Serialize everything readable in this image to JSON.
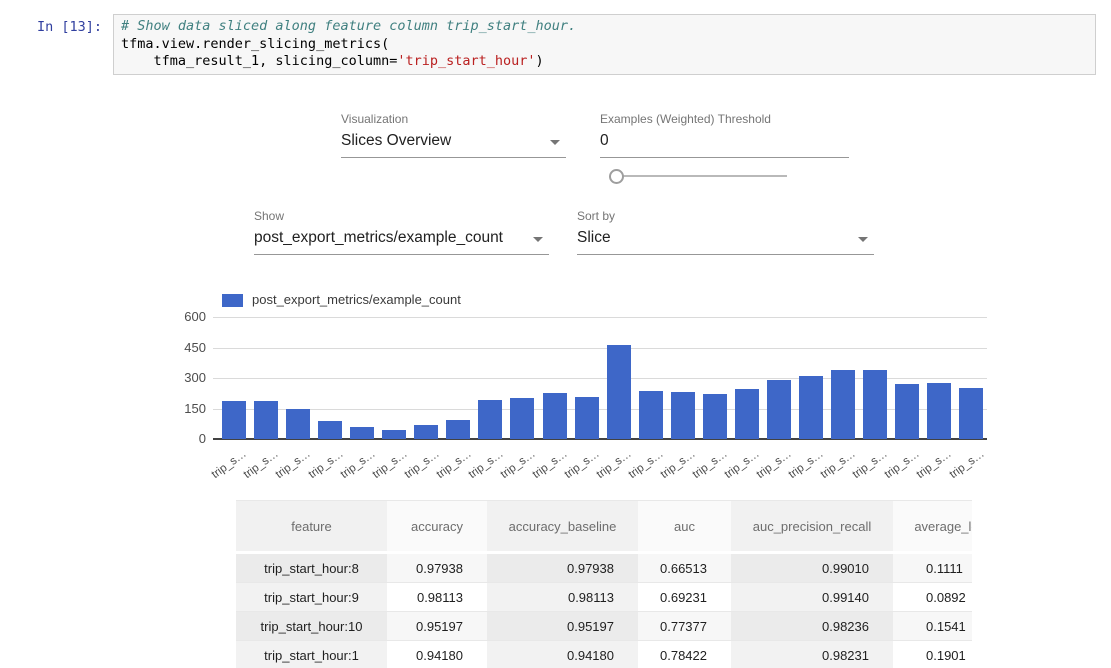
{
  "cell": {
    "prompt": "In [13]:",
    "code_lines": {
      "comment": "# Show data sliced along feature column trip_start_hour.",
      "call_line": "tfma.view.render_slicing_metrics(",
      "args_pre": "    tfma_result_1, slicing_column=",
      "args_string": "'trip_start_hour'",
      "args_post": ")"
    }
  },
  "controls": {
    "visualization_label": "Visualization",
    "visualization_value": "Slices Overview",
    "threshold_label": "Examples (Weighted) Threshold",
    "threshold_value": "0",
    "show_label": "Show",
    "show_value": "post_export_metrics/example_count",
    "sort_label": "Sort by",
    "sort_value": "Slice"
  },
  "chart_data": {
    "type": "bar",
    "legend": "post_export_metrics/example_count",
    "bar_color": "#3e67c8",
    "ylim": [
      0,
      600
    ],
    "y_ticks": [
      0,
      150,
      300,
      450,
      600
    ],
    "grid": true,
    "legend_position": "top",
    "categories": [
      "trip_s…",
      "trip_s…",
      "trip_s…",
      "trip_s…",
      "trip_s…",
      "trip_s…",
      "trip_s…",
      "trip_s…",
      "trip_s…",
      "trip_s…",
      "trip_s…",
      "trip_s…",
      "trip_s…",
      "trip_s…",
      "trip_s…",
      "trip_s…",
      "trip_s…",
      "trip_s…",
      "trip_s…",
      "trip_s…",
      "trip_s…",
      "trip_s…",
      "trip_s…",
      "trip_s…"
    ],
    "values": [
      185,
      185,
      148,
      88,
      60,
      45,
      70,
      93,
      190,
      203,
      225,
      205,
      462,
      235,
      230,
      220,
      247,
      288,
      310,
      337,
      337,
      270,
      277,
      250
    ]
  },
  "table": {
    "headers": [
      "feature",
      "accuracy",
      "accuracy_baseline",
      "auc",
      "auc_precision_recall",
      "average_loss"
    ],
    "rows": [
      [
        "trip_start_hour:8",
        "0.97938",
        "0.97938",
        "0.66513",
        "0.99010",
        "0.1111"
      ],
      [
        "trip_start_hour:9",
        "0.98113",
        "0.98113",
        "0.69231",
        "0.99140",
        "0.0892"
      ],
      [
        "trip_start_hour:10",
        "0.95197",
        "0.95197",
        "0.77377",
        "0.98236",
        "0.1541"
      ],
      [
        "trip_start_hour:1",
        "0.94180",
        "0.94180",
        "0.78422",
        "0.98231",
        "0.1901"
      ]
    ]
  }
}
